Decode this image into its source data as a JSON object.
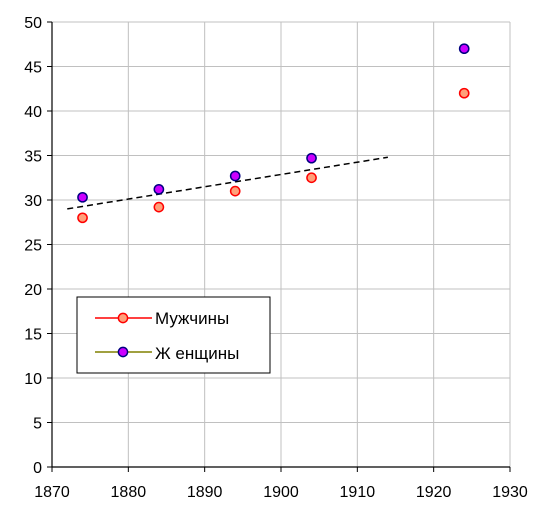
{
  "chart_data": {
    "type": "scatter",
    "title": "",
    "xlabel": "",
    "ylabel": "",
    "xlim": [
      1870,
      1930
    ],
    "ylim": [
      0,
      50
    ],
    "x_ticks": [
      1870,
      1880,
      1890,
      1900,
      1910,
      1920,
      1930
    ],
    "y_ticks": [
      0,
      5,
      10,
      15,
      20,
      25,
      30,
      35,
      40,
      45,
      50
    ],
    "grid": true,
    "legend_position": "middle-left",
    "series": [
      {
        "name": "Мужчины",
        "x": [
          1874,
          1884,
          1894,
          1904,
          1924
        ],
        "y": [
          28.0,
          29.2,
          31.0,
          32.5,
          42.0
        ],
        "marker_fill": "#ffa07a",
        "marker_edge": "#ff0000",
        "line_color": "#ff0000"
      },
      {
        "name": "Ж енщины",
        "x": [
          1874,
          1884,
          1894,
          1904,
          1924
        ],
        "y": [
          30.3,
          31.2,
          32.7,
          34.7,
          47.0
        ],
        "marker_fill": "#cc00ff",
        "marker_edge": "#000080",
        "line_color": "#808000"
      }
    ],
    "trendline": {
      "style": "dashed",
      "color": "#000000",
      "x": [
        1872,
        1914
      ],
      "y": [
        29.0,
        34.8
      ]
    }
  }
}
